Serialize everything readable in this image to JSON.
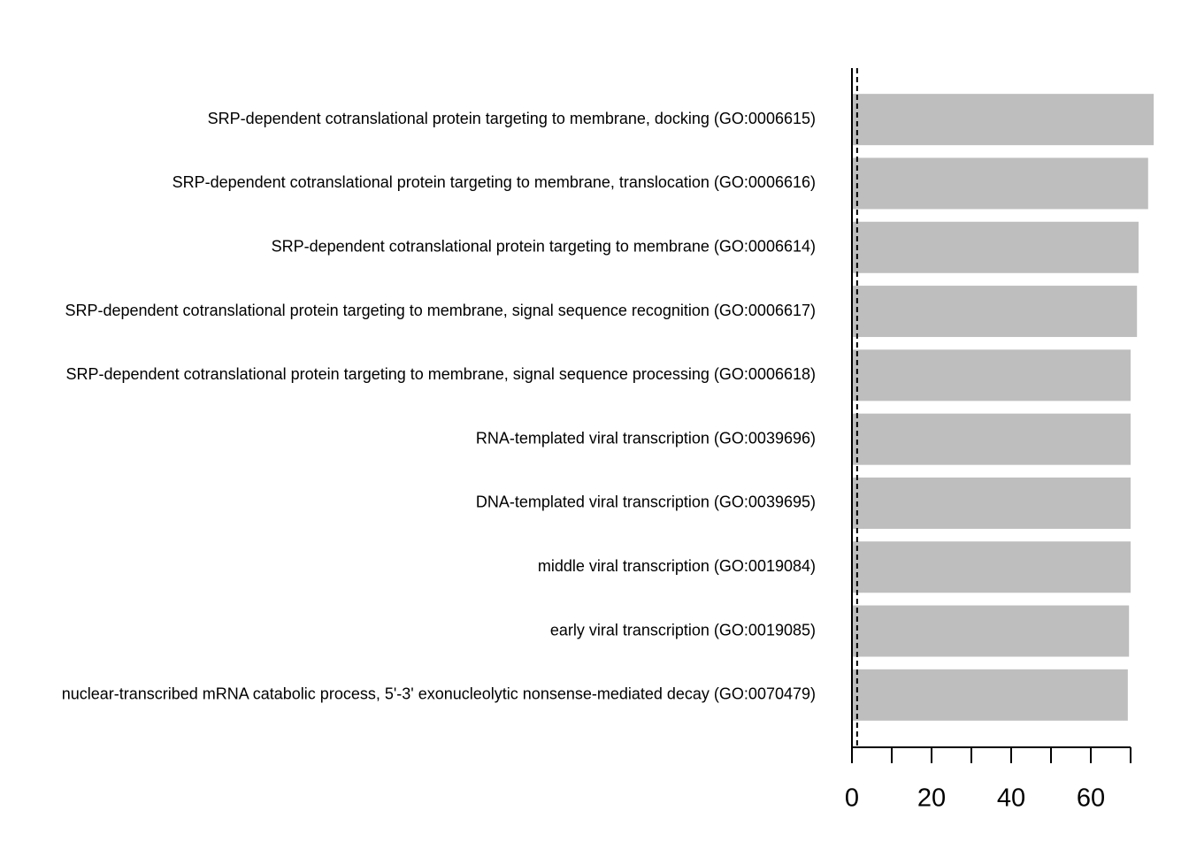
{
  "chart_data": {
    "type": "barh",
    "categories": [
      "SRP-dependent cotranslational protein targeting to membrane, docking (GO:0006615)",
      "SRP-dependent cotranslational protein targeting to membrane, translocation (GO:0006616)",
      "SRP-dependent cotranslational protein targeting to membrane (GO:0006614)",
      "SRP-dependent cotranslational protein targeting to membrane, signal sequence recognition (GO:0006617)",
      "SRP-dependent cotranslational protein targeting to membrane, signal sequence processing (GO:0006618)",
      "RNA-templated viral transcription (GO:0039696)",
      "DNA-templated viral transcription (GO:0039695)",
      "middle viral transcription (GO:0019084)",
      "early viral transcription (GO:0019085)",
      "nuclear-transcribed mRNA catabolic process, 5'-3' exonucleolytic nonsense-mediated decay (GO:0070479)"
    ],
    "values": [
      75.8,
      74.4,
      72.0,
      71.6,
      70.0,
      70.0,
      70.0,
      70.0,
      69.6,
      69.3
    ],
    "color": "#bebebe",
    "xlim": [
      0,
      70
    ],
    "xticks": [
      0,
      20,
      40,
      60
    ],
    "minor_xticks": [
      10,
      30,
      50,
      70
    ],
    "threshold": 1.3
  }
}
